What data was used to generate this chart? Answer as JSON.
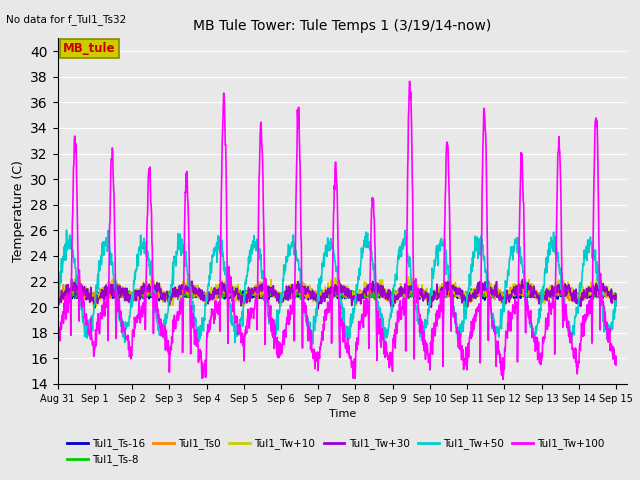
{
  "title": "MB Tule Tower: Tule Temps 1 (3/19/14-now)",
  "no_data_text": "No data for f_Tul1_Ts32",
  "xlabel": "Time",
  "ylabel": "Temperature (C)",
  "ylim": [
    14,
    41
  ],
  "yticks": [
    14,
    16,
    18,
    20,
    22,
    24,
    26,
    28,
    30,
    32,
    34,
    36,
    38,
    40
  ],
  "x_tick_labels": [
    "Aug 31",
    "Sep 1",
    "Sep 2",
    "Sep 3",
    "Sep 4",
    "Sep 5",
    "Sep 6",
    "Sep 7",
    "Sep 8",
    "Sep 9",
    "Sep 10",
    "Sep 11",
    "Sep 12",
    "Sep 13",
    "Sep 14",
    "Sep 15"
  ],
  "x_tick_positions": [
    0,
    1,
    2,
    3,
    4,
    5,
    6,
    7,
    8,
    9,
    10,
    11,
    12,
    13,
    14,
    15
  ],
  "bg_color": "#e8e8e8",
  "plot_bg_color": "#e8e8e8",
  "legend_label_box": "MB_tule",
  "legend_box_facecolor": "#cccc00",
  "legend_box_edgecolor": "#888800",
  "legend_box_text_color": "#cc0000",
  "series": [
    {
      "label": "Tul1_Ts-16",
      "color": "#0000cc",
      "lw": 1.2
    },
    {
      "label": "Tul1_Ts-8",
      "color": "#00cc00",
      "lw": 1.2
    },
    {
      "label": "Tul1_Ts0",
      "color": "#ff8800",
      "lw": 1.2
    },
    {
      "label": "Tul1_Tw+10",
      "color": "#cccc00",
      "lw": 1.2
    },
    {
      "label": "Tul1_Tw+30",
      "color": "#9900cc",
      "lw": 1.2
    },
    {
      "label": "Tul1_Tw+50",
      "color": "#00cccc",
      "lw": 1.2
    },
    {
      "label": "Tul1_Tw+100",
      "color": "#ff00ff",
      "lw": 1.2
    }
  ]
}
